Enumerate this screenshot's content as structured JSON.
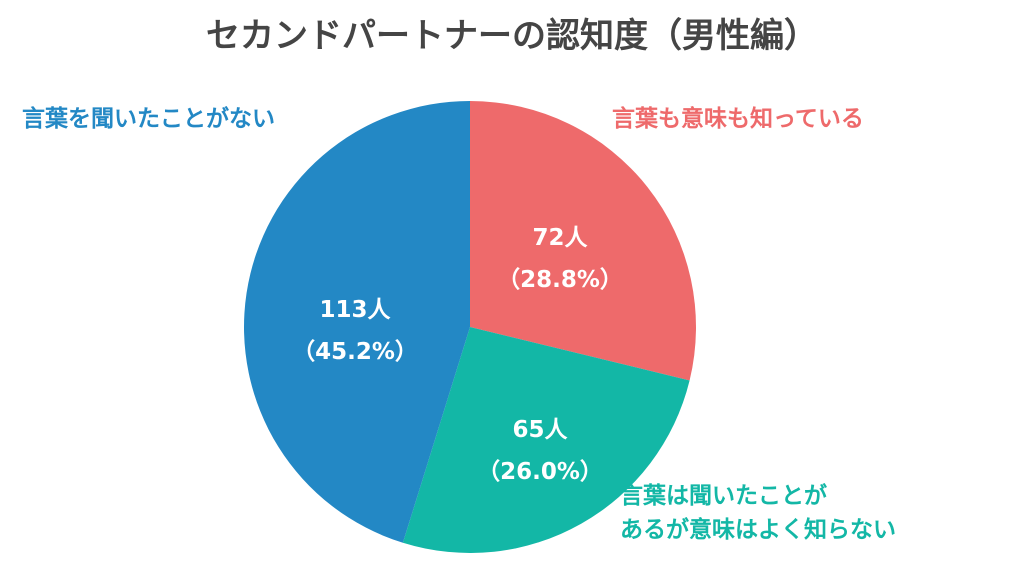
{
  "chart_data": {
    "type": "pie",
    "title": "セカンドパートナーの認知度（男性編）",
    "start_angle": "top",
    "direction": "clockwise",
    "legend": "outside labels",
    "slices": [
      {
        "name": "言葉も意味も知っている",
        "value": 72,
        "percent": 28.8,
        "count_label": "72人",
        "percent_label": "（28.8%）",
        "color": "#EE6A6B"
      },
      {
        "name": "言葉は聞いたことがあるが意味はよく知らない",
        "name_lines": [
          "言葉は聞いたことが",
          "あるが意味はよく知らない"
        ],
        "value": 65,
        "percent": 26.0,
        "count_label": "65人",
        "percent_label": "（26.0%）",
        "color": "#13B7A6"
      },
      {
        "name": "言葉を聞いたことがない",
        "value": 113,
        "percent": 45.2,
        "count_label": "113人",
        "percent_label": "（45.2%）",
        "color": "#2388C5"
      }
    ]
  }
}
